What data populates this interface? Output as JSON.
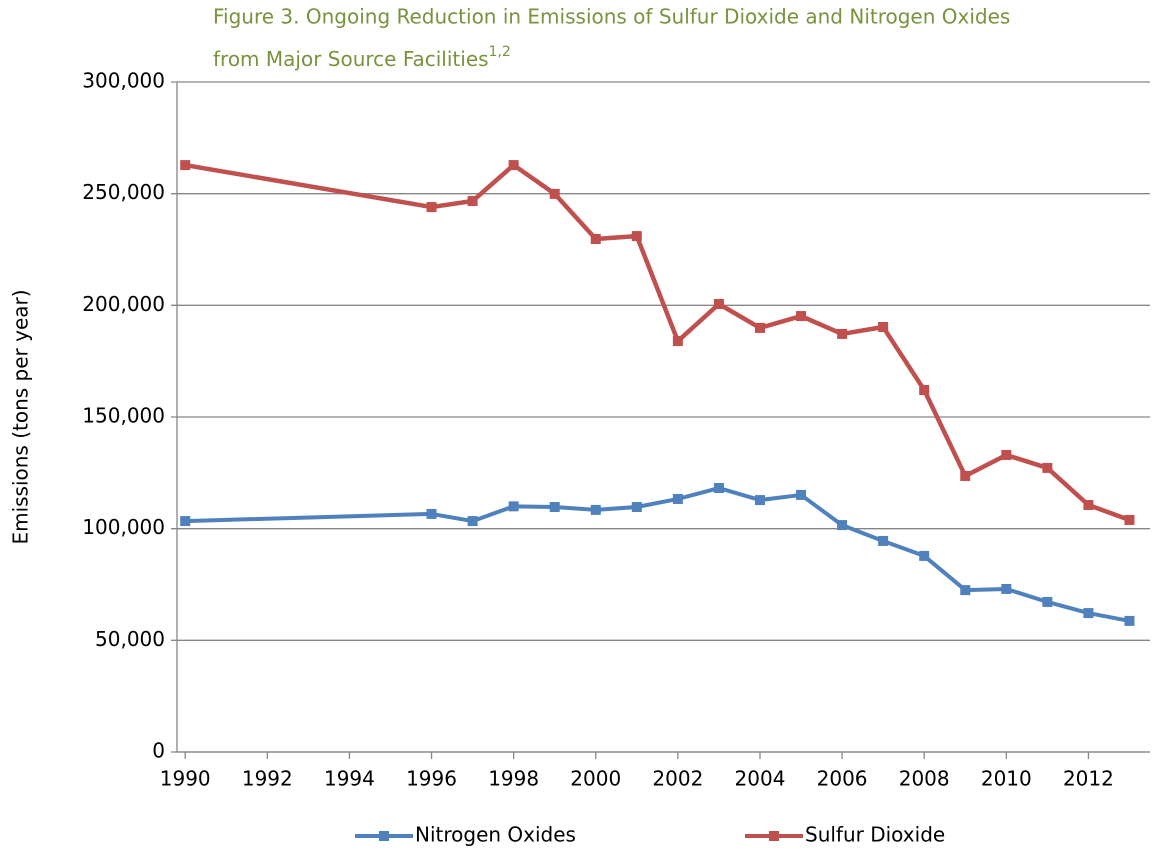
{
  "chart_data": {
    "type": "line",
    "title": [
      "Figure 3. Ongoing Reduction in Emissions of  Sulfur Dioxide and Nitrogen Oxides",
      "from Major Source Facilities"
    ],
    "title_superscript": "1,2",
    "y_label": "Emissions (tons per year)",
    "x": [
      1990,
      1996,
      1997,
      1998,
      1999,
      2000,
      2001,
      2002,
      2003,
      2004,
      2005,
      2006,
      2007,
      2008,
      2009,
      2010,
      2011,
      2012,
      2013
    ],
    "series": [
      {
        "name": "Nitrogen Oxides",
        "color": "#4f81bd",
        "values": [
          103400,
          106600,
          103400,
          110000,
          109700,
          108400,
          109700,
          113300,
          118200,
          112800,
          115100,
          101600,
          94500,
          87800,
          72500,
          73000,
          67200,
          62200,
          58700
        ]
      },
      {
        "name": "Sulfur Dioxide",
        "color": "#c0504d",
        "values": [
          262800,
          244000,
          246700,
          262800,
          249900,
          229700,
          231000,
          184000,
          200600,
          189900,
          195200,
          187200,
          190300,
          162100,
          123600,
          133000,
          127200,
          110600,
          103900
        ]
      }
    ],
    "xlim": [
      1989.8,
      2013.5
    ],
    "xticks": [
      1990,
      1992,
      1994,
      1996,
      1998,
      2000,
      2002,
      2004,
      2006,
      2008,
      2010,
      2012
    ],
    "ylim": [
      0,
      300000
    ],
    "yticks": [
      0,
      {
        "value": 50000,
        "label": "50,000"
      },
      {
        "value": 100000,
        "label": "100,000"
      },
      {
        "value": 150000,
        "label": "150,000"
      },
      {
        "value": 200000,
        "label": "200,000"
      },
      {
        "value": 250000,
        "label": "250,000"
      },
      {
        "value": 300000,
        "label": "300,000"
      }
    ],
    "grid": true,
    "legend": "bottom"
  }
}
